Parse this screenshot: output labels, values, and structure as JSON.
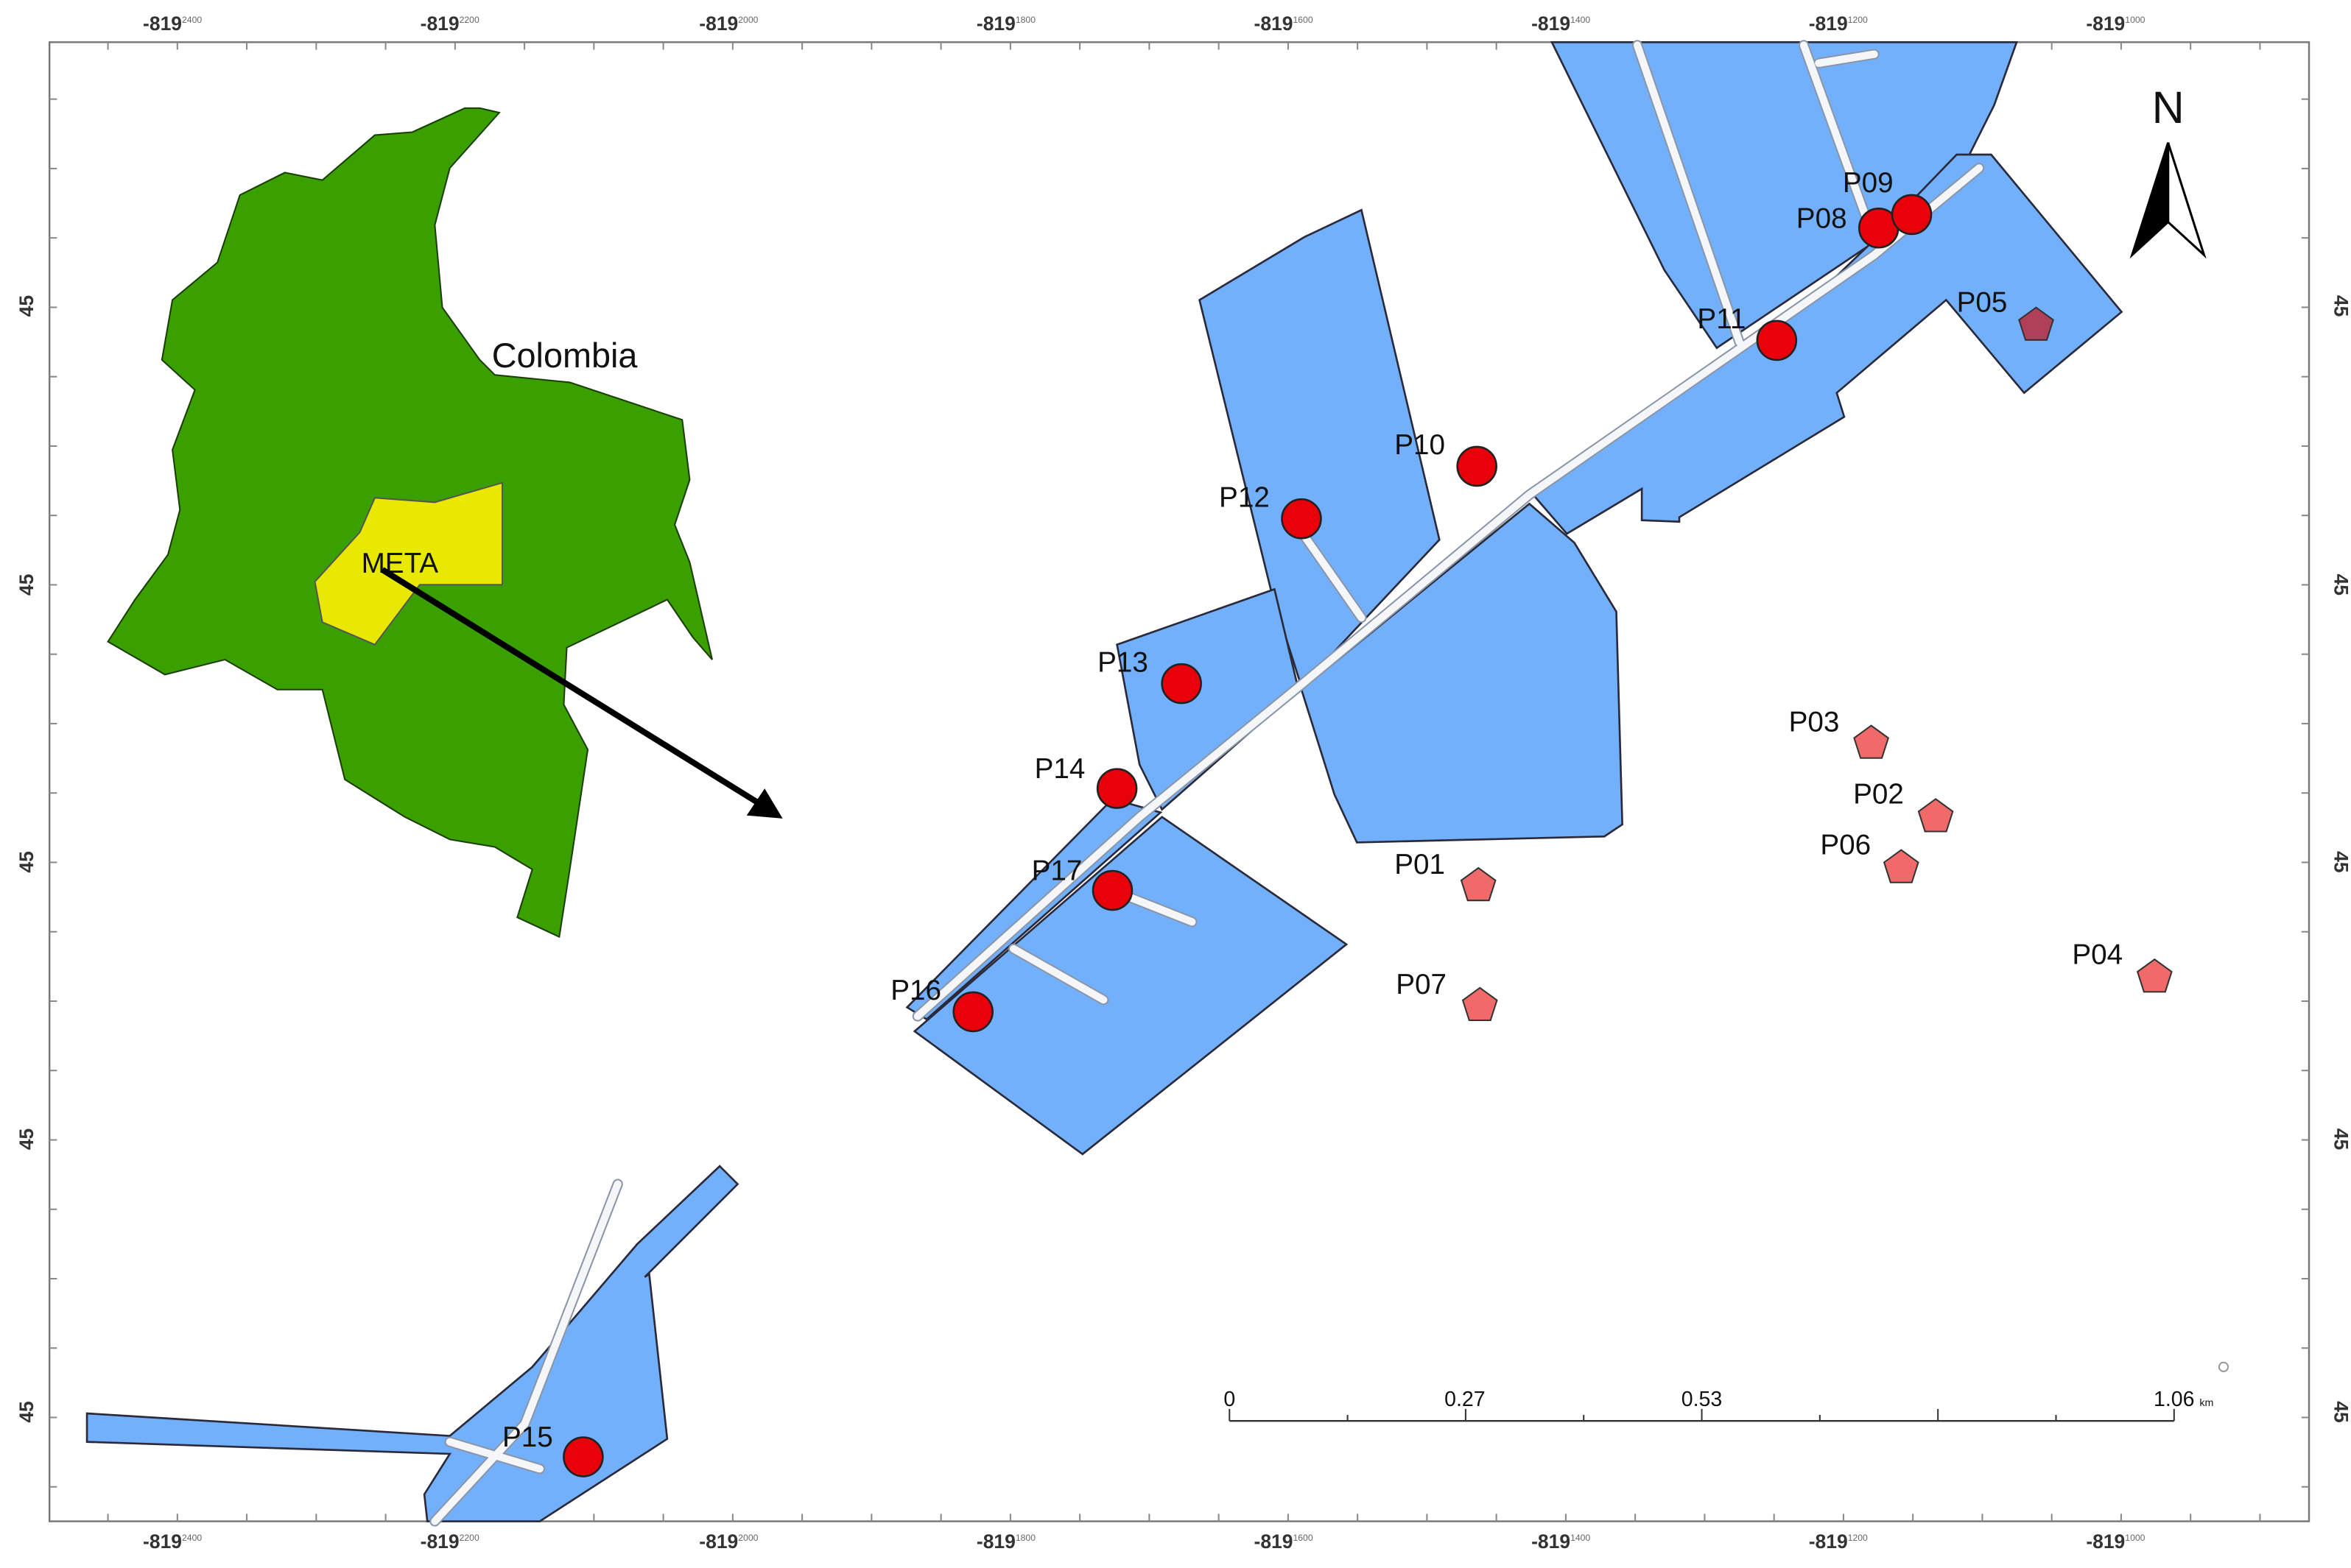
{
  "map": {
    "labels": {
      "country": "Colombia",
      "region": "META",
      "north": "N"
    },
    "points": [
      {
        "label": "P01",
        "symbol": "pentagon",
        "color": "#f06a6a"
      },
      {
        "label": "P02",
        "symbol": "pentagon",
        "color": "#f06a6a"
      },
      {
        "label": "P03",
        "symbol": "pentagon",
        "color": "#f06a6a"
      },
      {
        "label": "P04",
        "symbol": "pentagon",
        "color": "#f06a6a"
      },
      {
        "label": "P05",
        "symbol": "pentagon",
        "color": "#b0405a"
      },
      {
        "label": "P06",
        "symbol": "pentagon",
        "color": "#f06a6a"
      },
      {
        "label": "P07",
        "symbol": "pentagon",
        "color": "#f06a6a"
      },
      {
        "label": "P08",
        "symbol": "circle",
        "color": "#e8000a"
      },
      {
        "label": "P09",
        "symbol": "circle",
        "color": "#e8000a"
      },
      {
        "label": "P10",
        "symbol": "circle",
        "color": "#e8000a"
      },
      {
        "label": "P11",
        "symbol": "circle",
        "color": "#e8000a"
      },
      {
        "label": "P12",
        "symbol": "circle",
        "color": "#e8000a"
      },
      {
        "label": "P13",
        "symbol": "circle",
        "color": "#e8000a"
      },
      {
        "label": "P14",
        "symbol": "circle",
        "color": "#e8000a"
      },
      {
        "label": "P15",
        "symbol": "circle",
        "color": "#e8000a"
      },
      {
        "label": "P16",
        "symbol": "circle",
        "color": "#e8000a"
      },
      {
        "label": "P17",
        "symbol": "circle",
        "color": "#e8000a"
      }
    ],
    "frame": {
      "x_labels": [
        {
          "deg": "-819",
          "sub": "2400"
        },
        {
          "deg": "-819",
          "sub": "2200"
        },
        {
          "deg": "-819",
          "sub": "2000"
        },
        {
          "deg": "-819",
          "sub": "1800"
        },
        {
          "deg": "-819",
          "sub": "1600"
        },
        {
          "deg": "-819",
          "sub": "1400"
        },
        {
          "deg": "-819",
          "sub": "1200"
        },
        {
          "deg": "-819",
          "sub": "1000"
        }
      ],
      "y_labels": [
        "45",
        "45",
        "45",
        "45",
        "45"
      ]
    },
    "scale_bar": {
      "labels": [
        "0",
        "0.27",
        "0.53",
        "1.06"
      ],
      "unit": "km"
    }
  }
}
